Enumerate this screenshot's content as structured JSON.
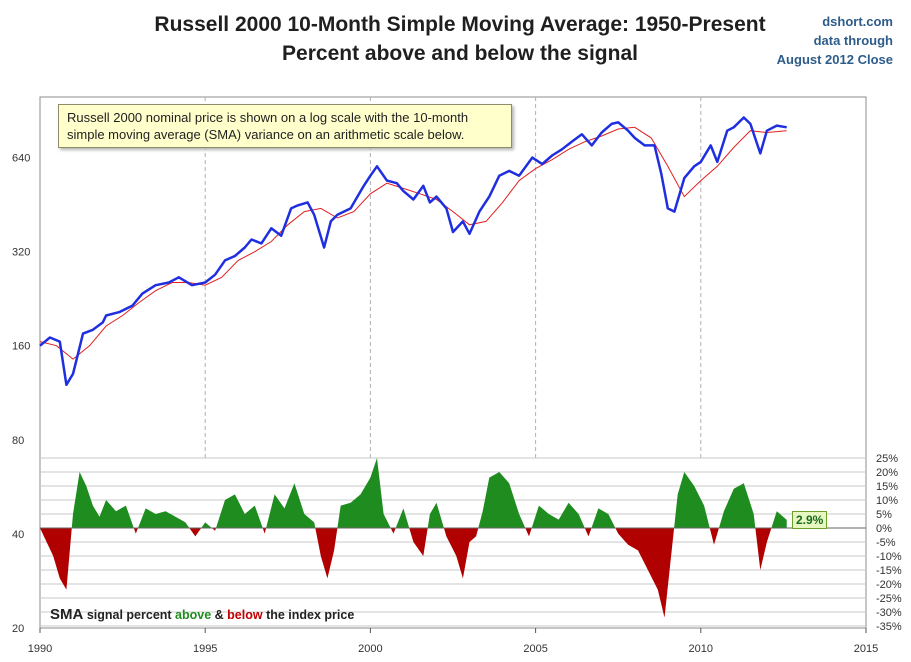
{
  "header": {
    "title_line1": "Russell 2000 10-Month Simple Moving Average: 1950-Present",
    "title_line2": "Percent above and below the signal",
    "credit_line1": "dshort.com",
    "credit_line2": "data through",
    "credit_line3": "August 2012 Close"
  },
  "annotation": {
    "note": "Russell 2000 nominal price is shown on a log scale with the 10-month simple moving average (SMA) variance on an arithmetic scale below.",
    "sma_label_prefix": "SMA",
    "sma_label_mid": " signal percent ",
    "sma_label_above": "above",
    "sma_label_amp": " & ",
    "sma_label_below": "below",
    "sma_label_suffix": " the index price",
    "latest_value": "2.9%"
  },
  "colors": {
    "price_line": "#1f2fe0",
    "sma_line": "#e02020",
    "positive_area": "#1e8c1e",
    "negative_area": "#b00000",
    "grid": "#b0b0b0"
  },
  "chart_data": {
    "type": "line",
    "x_ticks": [
      "1990",
      "1995",
      "2000",
      "2005",
      "2010",
      "2015"
    ],
    "y_left_ticks": [
      "20",
      "40",
      "80",
      "160",
      "320",
      "640"
    ],
    "y_left_scale": "log",
    "y_right_ticks": [
      "25%",
      "20%",
      "15%",
      "10%",
      "5%",
      "0%",
      "-5%",
      "-10%",
      "-15%",
      "-20%",
      "-25%",
      "-30%",
      "-35%"
    ],
    "xlim": [
      1990,
      2015
    ],
    "ylim_left": [
      20,
      1000
    ],
    "ylim_right": [
      -35,
      25
    ],
    "series": [
      {
        "name": "Russell 2000",
        "x": [
          1990.0,
          1990.3,
          1990.6,
          1990.8,
          1991.0,
          1991.3,
          1991.6,
          1991.9,
          1992.0,
          1992.4,
          1992.8,
          1993.1,
          1993.5,
          1993.9,
          1994.2,
          1994.6,
          1995.0,
          1995.3,
          1995.6,
          1995.9,
          1996.2,
          1996.4,
          1996.7,
          1997.0,
          1997.3,
          1997.6,
          1997.8,
          1998.1,
          1998.3,
          1998.6,
          1998.8,
          1999.0,
          1999.4,
          1999.8,
          2000.0,
          2000.2,
          2000.5,
          2000.8,
          2001.0,
          2001.3,
          2001.6,
          2001.8,
          2002.0,
          2002.3,
          2002.5,
          2002.8,
          2003.0,
          2003.3,
          2003.6,
          2003.9,
          2004.2,
          2004.5,
          2004.9,
          2005.2,
          2005.5,
          2005.8,
          2006.1,
          2006.4,
          2006.7,
          2007.0,
          2007.3,
          2007.5,
          2007.8,
          2008.0,
          2008.3,
          2008.6,
          2008.8,
          2009.0,
          2009.2,
          2009.5,
          2009.8,
          2010.0,
          2010.3,
          2010.5,
          2010.8,
          2011.0,
          2011.3,
          2011.5,
          2011.8,
          2012.0,
          2012.3,
          2012.6
        ],
        "values": [
          160,
          170,
          165,
          120,
          130,
          175,
          180,
          190,
          200,
          205,
          215,
          235,
          250,
          255,
          265,
          250,
          255,
          270,
          300,
          310,
          330,
          350,
          340,
          380,
          360,
          440,
          450,
          460,
          420,
          330,
          400,
          420,
          440,
          520,
          560,
          600,
          540,
          530,
          500,
          470,
          520,
          460,
          480,
          440,
          370,
          400,
          365,
          430,
          480,
          560,
          580,
          560,
          640,
          610,
          650,
          680,
          720,
          760,
          700,
          770,
          820,
          830,
          780,
          740,
          700,
          700,
          570,
          440,
          430,
          550,
          600,
          620,
          700,
          620,
          780,
          800,
          860,
          820,
          660,
          780,
          810,
          800
        ]
      },
      {
        "name": "10-Month SMA",
        "x": [
          1990.0,
          1990.5,
          1991.0,
          1991.5,
          1992.0,
          1992.5,
          1993.0,
          1993.5,
          1994.0,
          1994.5,
          1995.0,
          1995.5,
          1996.0,
          1996.5,
          1997.0,
          1997.5,
          1998.0,
          1998.5,
          1999.0,
          1999.5,
          2000.0,
          2000.5,
          2001.0,
          2001.5,
          2002.0,
          2002.5,
          2003.0,
          2003.5,
          2004.0,
          2004.5,
          2005.0,
          2005.5,
          2006.0,
          2006.5,
          2007.0,
          2007.5,
          2008.0,
          2008.5,
          2009.0,
          2009.5,
          2010.0,
          2010.5,
          2011.0,
          2011.5,
          2012.0,
          2012.6
        ],
        "values": [
          165,
          160,
          145,
          160,
          185,
          200,
          220,
          240,
          255,
          255,
          250,
          265,
          300,
          320,
          345,
          390,
          430,
          440,
          410,
          430,
          490,
          530,
          510,
          490,
          470,
          430,
          390,
          400,
          460,
          540,
          590,
          630,
          680,
          720,
          750,
          790,
          800,
          740,
          600,
          480,
          540,
          600,
          690,
          780,
          770,
          780
        ]
      },
      {
        "name": "SMA variance",
        "x": [
          1990.0,
          1990.2,
          1990.4,
          1990.6,
          1990.8,
          1991.0,
          1991.2,
          1991.4,
          1991.6,
          1991.8,
          1992.0,
          1992.3,
          1992.6,
          1992.9,
          1993.2,
          1993.5,
          1993.8,
          1994.1,
          1994.4,
          1994.7,
          1995.0,
          1995.3,
          1995.6,
          1995.9,
          1996.2,
          1996.5,
          1996.8,
          1997.1,
          1997.4,
          1997.7,
          1998.0,
          1998.3,
          1998.5,
          1998.7,
          1998.9,
          1999.1,
          1999.4,
          1999.7,
          2000.0,
          2000.2,
          2000.4,
          2000.7,
          2001.0,
          2001.3,
          2001.6,
          2001.8,
          2002.0,
          2002.3,
          2002.6,
          2002.8,
          2003.0,
          2003.2,
          2003.4,
          2003.6,
          2003.9,
          2004.2,
          2004.5,
          2004.8,
          2005.1,
          2005.4,
          2005.7,
          2006.0,
          2006.3,
          2006.6,
          2006.9,
          2007.2,
          2007.5,
          2007.8,
          2008.1,
          2008.4,
          2008.7,
          2008.9,
          2009.1,
          2009.3,
          2009.5,
          2009.8,
          2010.1,
          2010.4,
          2010.7,
          2011.0,
          2011.3,
          2011.6,
          2011.8,
          2012.0,
          2012.3,
          2012.6
        ],
        "values": [
          0,
          -5,
          -10,
          -18,
          -22,
          5,
          20,
          15,
          8,
          4,
          10,
          6,
          8,
          -2,
          7,
          5,
          6,
          4,
          2,
          -3,
          2,
          -1,
          10,
          12,
          5,
          8,
          -2,
          12,
          7,
          16,
          5,
          2,
          -10,
          -18,
          -8,
          8,
          9,
          12,
          18,
          25,
          5,
          -2,
          7,
          -5,
          -10,
          5,
          9,
          -3,
          -10,
          -18,
          -5,
          -3,
          6,
          18,
          20,
          16,
          5,
          -3,
          8,
          5,
          3,
          9,
          5,
          -3,
          7,
          5,
          -2,
          -6,
          -8,
          -15,
          -22,
          -32,
          -10,
          12,
          20,
          15,
          8,
          -6,
          6,
          14,
          16,
          5,
          -15,
          -5,
          6,
          2.9
        ]
      }
    ],
    "title": "Russell 2000 10-Month Simple Moving Average: 1950-Present",
    "subtitle": "Percent above and below the signal",
    "grid": true
  }
}
